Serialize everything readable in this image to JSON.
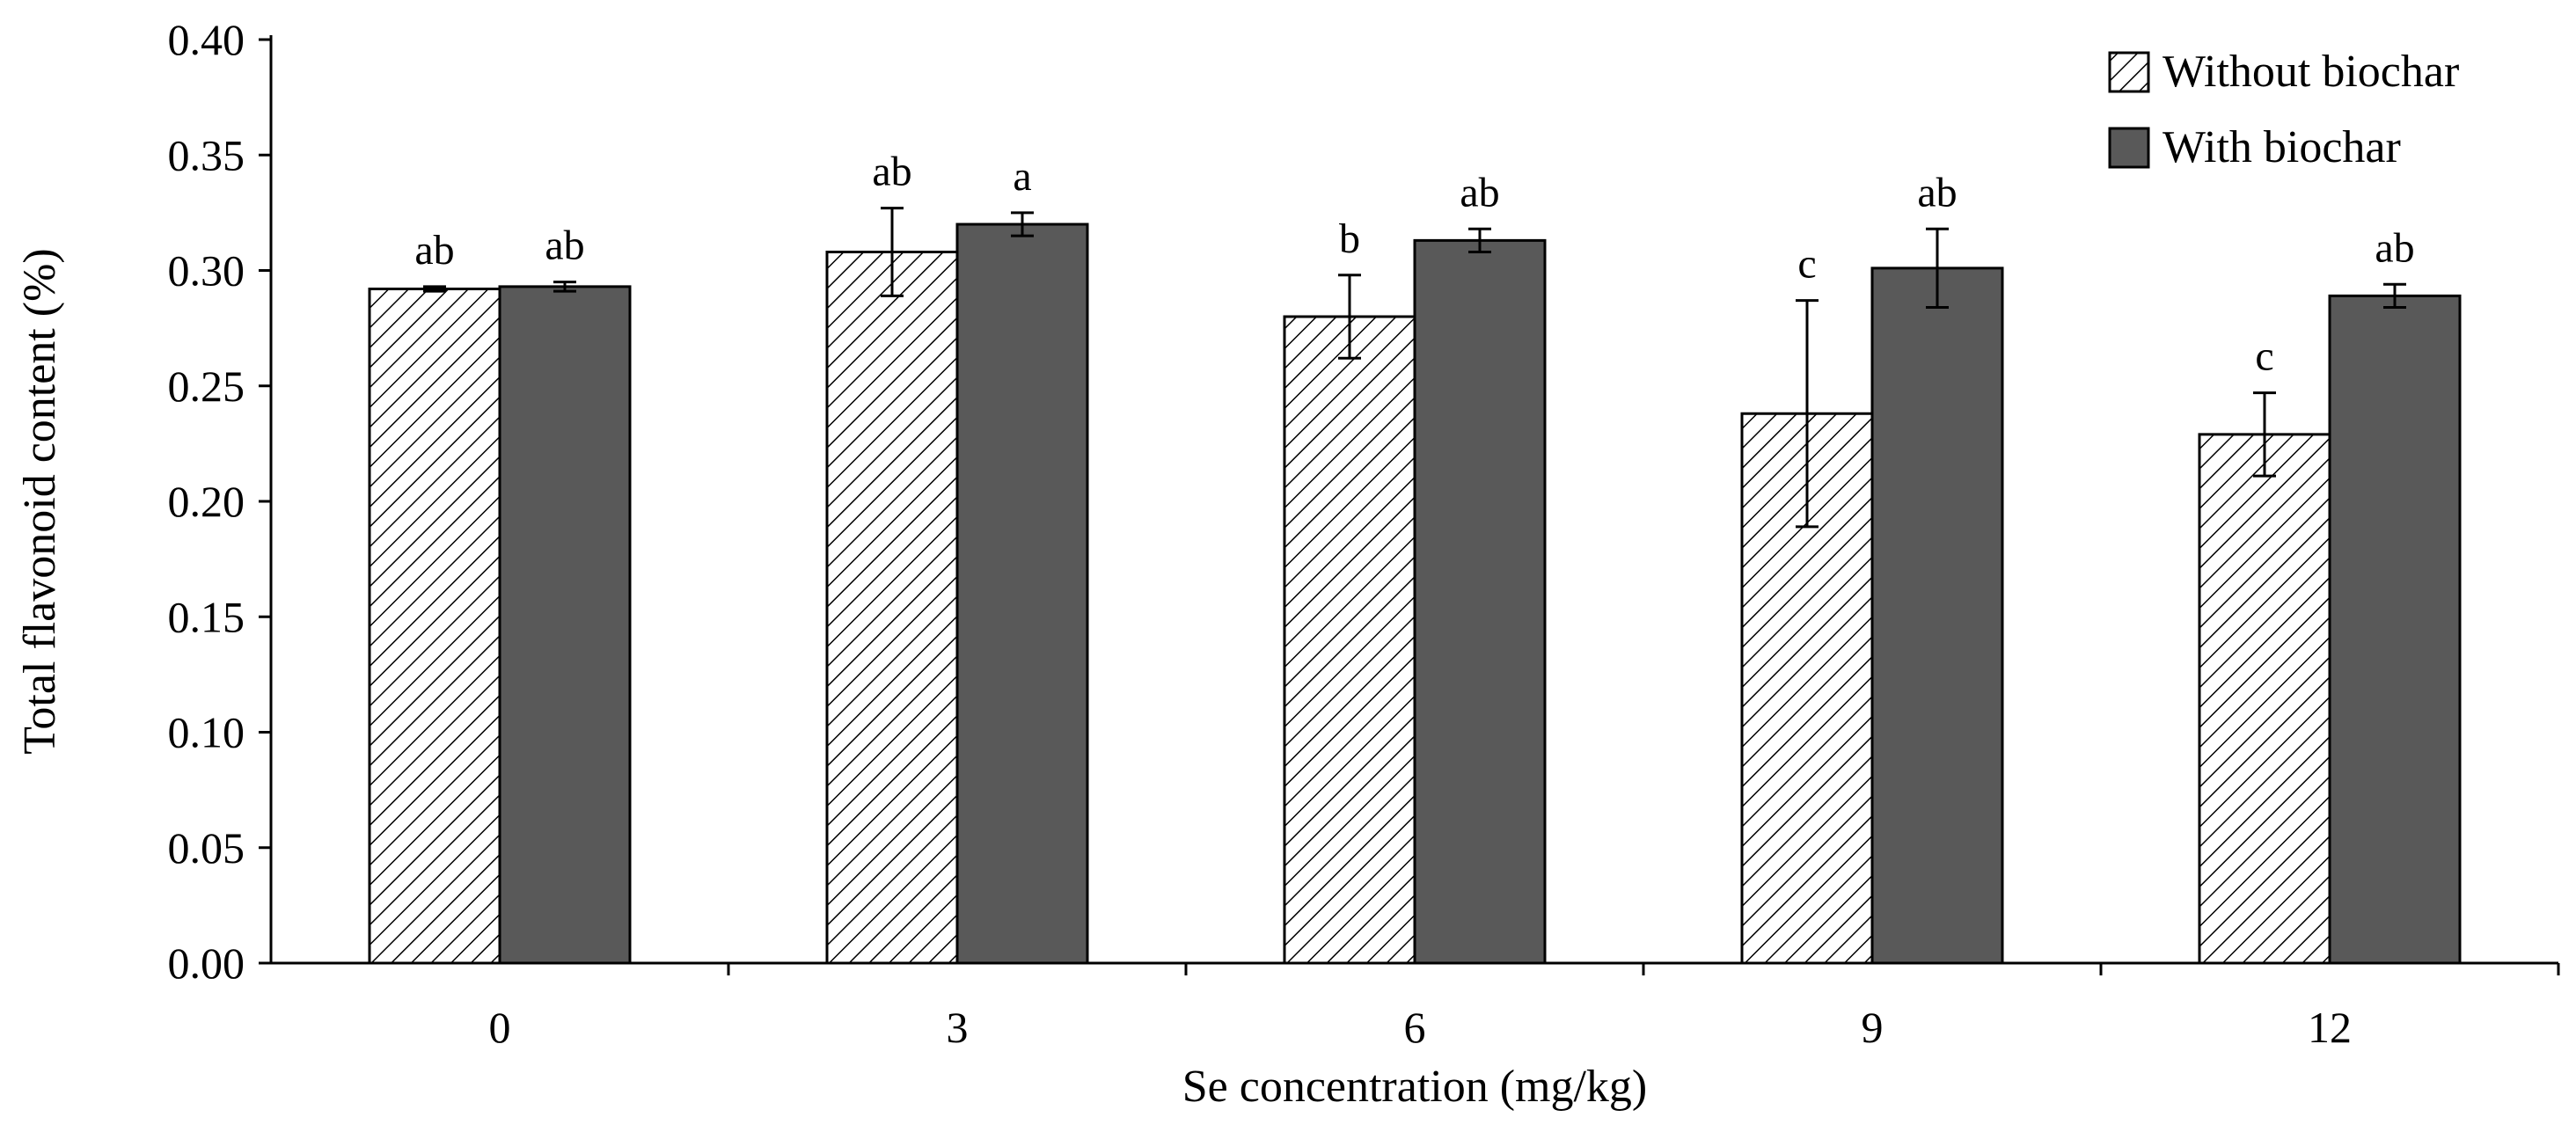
{
  "chart_data": {
    "type": "bar",
    "title": "",
    "xlabel": "Se concentration (mg/kg)",
    "ylabel": "Total flavonoid content  (%)",
    "categories": [
      "0",
      "3",
      "6",
      "9",
      "12"
    ],
    "ylim": [
      0,
      0.4
    ],
    "yticks": [
      "0.00",
      "0.05",
      "0.10",
      "0.15",
      "0.20",
      "0.25",
      "0.30",
      "0.35",
      "0.40"
    ],
    "legend_position": "top-right",
    "grid": false,
    "series": [
      {
        "name": "Without biochar",
        "pattern": "hatched",
        "color": "#ffffff",
        "values": [
          0.292,
          0.308,
          0.28,
          0.238,
          0.229
        ],
        "errors": [
          0.001,
          0.019,
          0.018,
          0.049,
          0.018
        ],
        "significance": [
          "ab",
          "ab",
          "b",
          "c",
          "c"
        ]
      },
      {
        "name": "With biochar",
        "pattern": "solid",
        "color": "#595959",
        "values": [
          0.293,
          0.32,
          0.313,
          0.301,
          0.289
        ],
        "errors": [
          0.002,
          0.005,
          0.005,
          0.017,
          0.005
        ],
        "significance": [
          "ab",
          "a",
          "ab",
          "ab",
          "ab"
        ]
      }
    ]
  }
}
